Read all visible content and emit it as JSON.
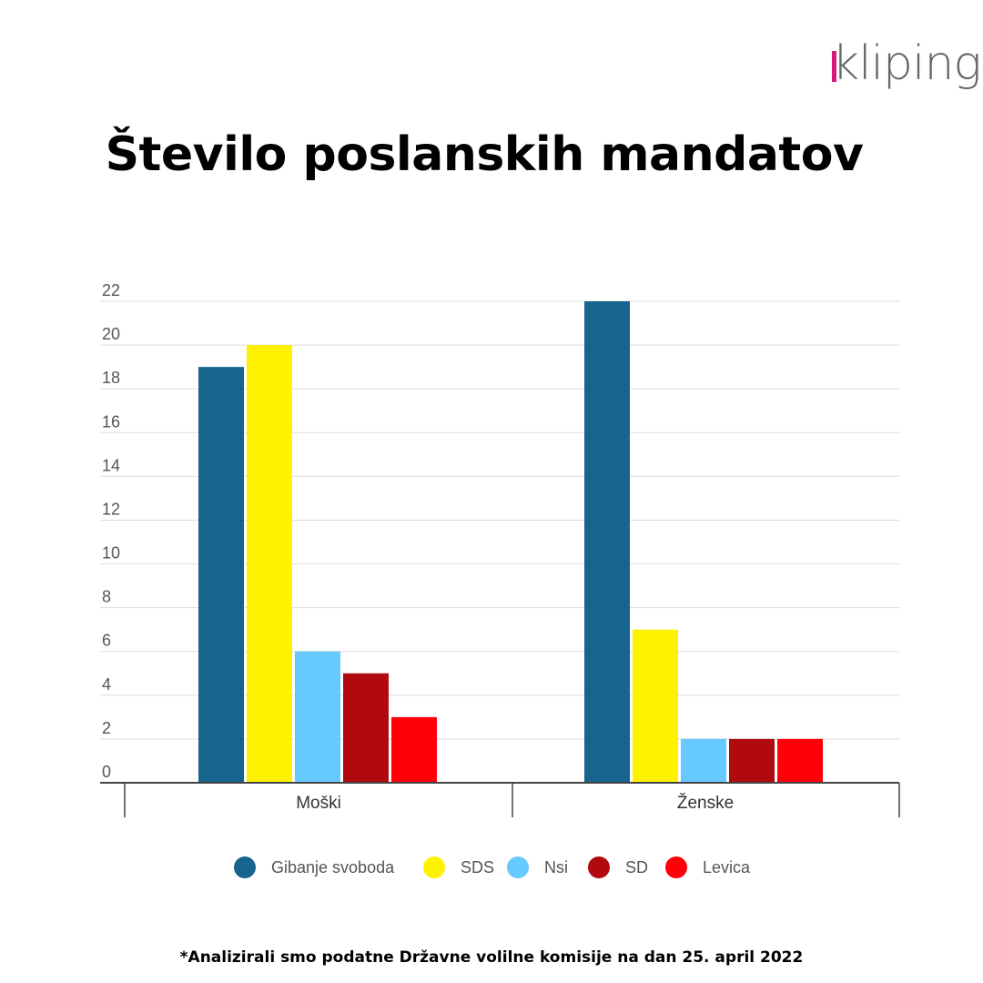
{
  "brand": {
    "logo_text": "kliping",
    "accent_color": "#d9187a"
  },
  "chart_data": {
    "type": "bar",
    "title": "Število poslanskih mandatov",
    "categories": [
      "Moški",
      "Ženske"
    ],
    "series": [
      {
        "name": "Gibanje svoboda",
        "color": "#17648e",
        "values": [
          19,
          22
        ]
      },
      {
        "name": "SDS",
        "color": "#fff200",
        "values": [
          20,
          7
        ]
      },
      {
        "name": "Nsi",
        "color": "#66c9ff",
        "values": [
          6,
          2
        ]
      },
      {
        "name": "SD",
        "color": "#b0090f",
        "values": [
          5,
          2
        ]
      },
      {
        "name": "Levica",
        "color": "#ff0008",
        "values": [
          3,
          2
        ]
      }
    ],
    "ylim": [
      0,
      22
    ],
    "yticks": [
      0,
      2,
      4,
      6,
      8,
      10,
      12,
      14,
      16,
      18,
      20,
      22
    ],
    "grid": true,
    "legend_position": "bottom"
  },
  "footnote": "*Analizirali smo podatne Državne volilne komisije na dan 25. april 2022"
}
